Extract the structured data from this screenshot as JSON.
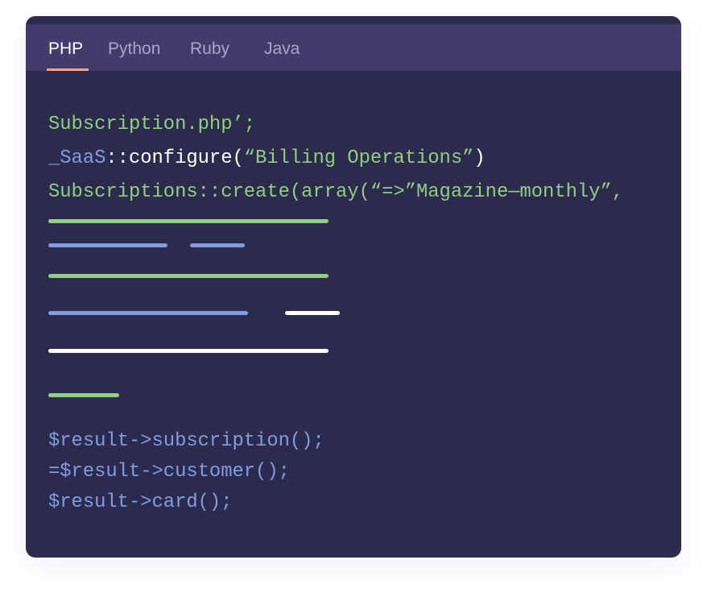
{
  "tabs": [
    {
      "label": "PHP",
      "active": true
    },
    {
      "label": "Python"
    },
    {
      "label": "Ruby"
    },
    {
      "label": "Java"
    }
  ],
  "code": {
    "line1": "Subscription.php’;",
    "line2_class": "_SaaS",
    "line2_method": "::configure(",
    "line2_string": "“Billing Operations”",
    "line2_end": ")",
    "line3": "Subscriptions::create(array(“=>”Magazine—monthly”,",
    "result_lines": [
      "$result->subscription();",
      "=$result->customer();",
      "$result->card();"
    ]
  },
  "colors": {
    "background": "#2d2b4d",
    "tab_bar": "#413c6c",
    "accent": "#f3a38c",
    "green": "#8fcf7f",
    "blue": "#7f9de0",
    "white": "#ffffff"
  }
}
